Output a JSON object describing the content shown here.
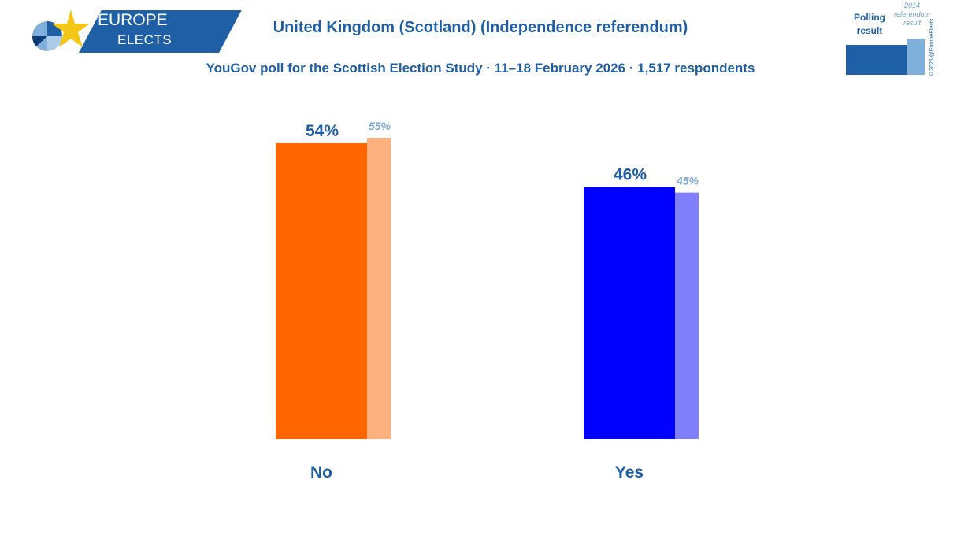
{
  "header": {
    "title": "United Kingdom (Scotland) (Independence referendum)",
    "subtitle": "YouGov poll for the Scottish Election Study · 11–18 February 2026 · 1,517 respondents"
  },
  "logo": {
    "line1": "EUROPE",
    "line2": "ELECTS",
    "colors": {
      "band": "#1f5fa6",
      "star": "#f5c518"
    }
  },
  "legend": {
    "poll_label": "Polling result",
    "previous_label": "2014 referendum result",
    "poll_color": "#1f5fa6",
    "previous_color": "#7fb0dc"
  },
  "copyright": "© 2026 @EuropeElects",
  "chart_data": {
    "type": "bar",
    "categories": [
      "No",
      "Yes"
    ],
    "series": [
      {
        "values": [
          54,
          46
        ],
        "labels": [
          "54%",
          "46%"
        ],
        "colors": [
          "#ff6600",
          "#0000ff"
        ]
      },
      {
        "values": [
          55,
          45
        ],
        "labels": [
          "55%",
          "45%"
        ],
        "colors": [
          "#ffb07f",
          "#8080ff"
        ]
      }
    ],
    "ylim": [
      0,
      55
    ]
  }
}
